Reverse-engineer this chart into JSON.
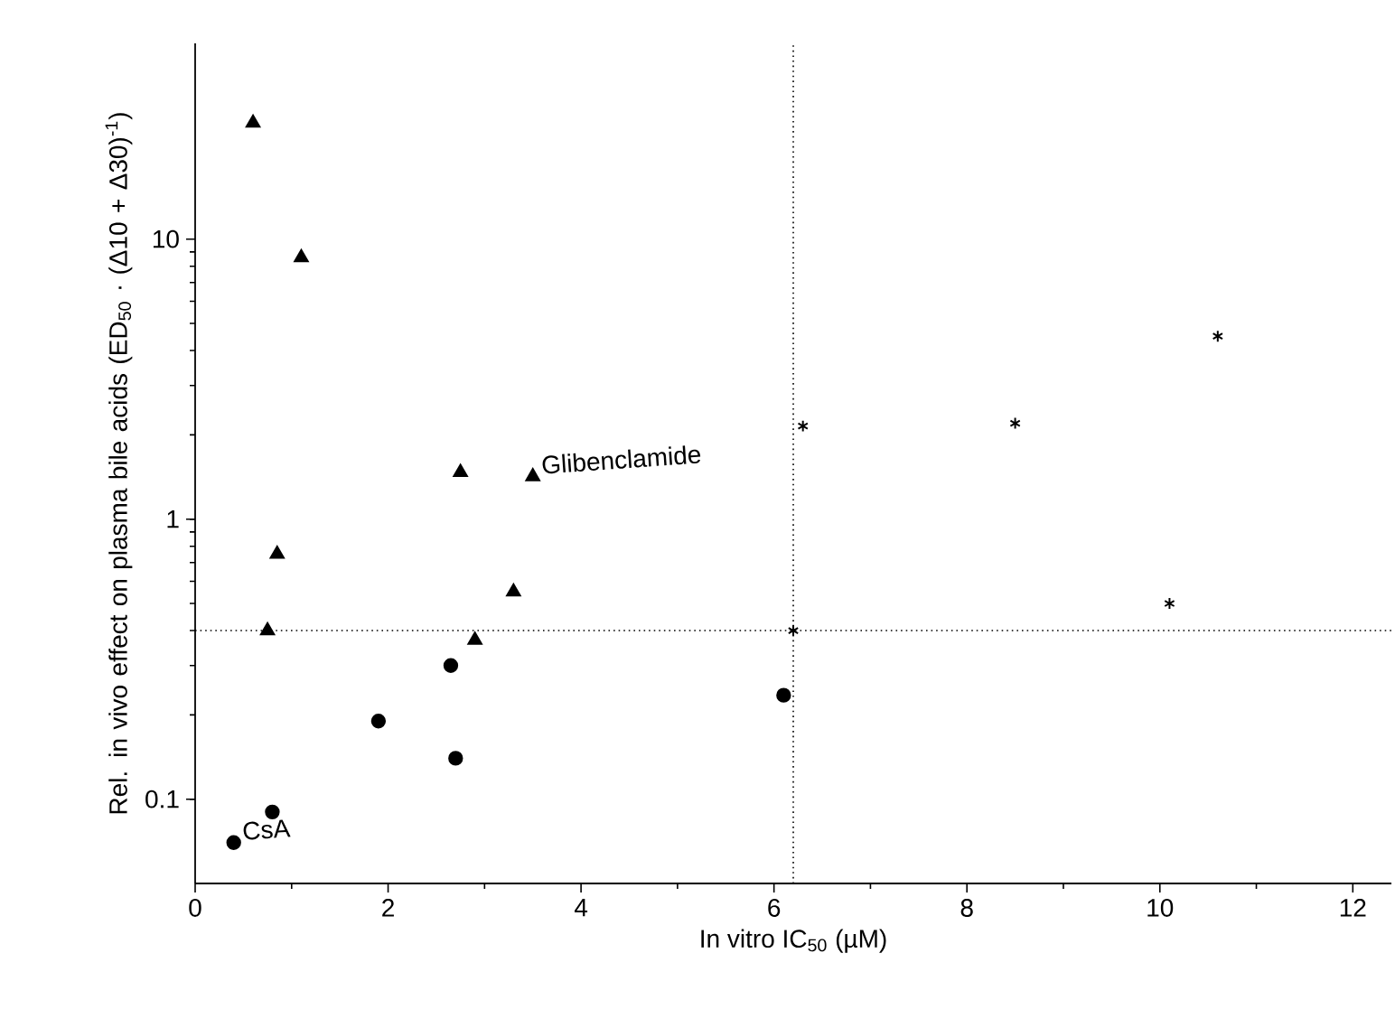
{
  "chart_data": {
    "type": "scatter",
    "xlabel": "In vitro IC$_{50}$ (µM)",
    "ylabel": "Rel. in vivo effect on plasma bile acids (ED$_{50}$ · (Δ10 + Δ30)$^{-1}$)",
    "log": "y",
    "xlim": [
      0,
      12.4
    ],
    "ylim": [
      0.05,
      50
    ],
    "xticks": [
      0,
      2,
      4,
      6,
      8,
      10,
      12
    ],
    "yticks": [
      0.1,
      1,
      10
    ],
    "grid": false,
    "series": [
      {
        "color": "#000000",
        "marker": "triangle",
        "x": [
          0.6,
          1.1,
          2.75,
          3.5,
          0.85,
          0.75,
          3.3,
          2.9
        ],
        "values": [
          26,
          8.6,
          1.47,
          1.42,
          0.75,
          0.4,
          0.55,
          0.37
        ]
      },
      {
        "color": "#000000",
        "marker": "circle",
        "x": [
          0.4,
          0.8,
          1.9,
          2.65,
          2.7,
          6.1
        ],
        "values": [
          0.07,
          0.09,
          0.19,
          0.3,
          0.14,
          0.235
        ]
      },
      {
        "color": "#000000",
        "marker": "cross",
        "x": [
          6.3,
          8.5,
          10.6,
          10.1,
          6.2
        ],
        "values": [
          2.15,
          2.2,
          4.5,
          0.5,
          0.4
        ]
      }
    ],
    "ref_lines": [
      {
        "axis": "y",
        "value": 0.4,
        "line_style": "dotted",
        "color": "#000000"
      },
      {
        "axis": "x",
        "value": 6.2,
        "line_style": "dotted",
        "color": "#000000"
      }
    ],
    "annotations": [
      {
        "text": "Glibenclamide",
        "x": 3.5,
        "y": 1.42
      },
      {
        "text": "CsA",
        "x": 0.4,
        "y": 0.07
      }
    ]
  }
}
